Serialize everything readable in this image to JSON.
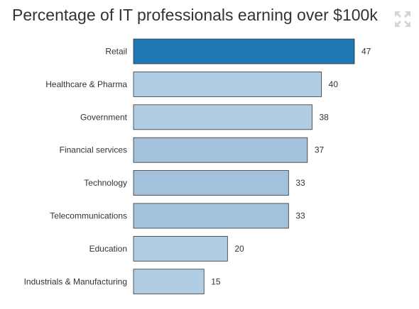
{
  "header": {
    "title": "Percentage of IT professionals earning over $100k"
  },
  "controls": {
    "expand_icon": "expand-arrows-icon"
  },
  "colors": {
    "highlight": "#1f77b4",
    "bar": "#b0cde4",
    "bar_alt": "#a3c1da",
    "bar_stroke": "#333333"
  },
  "chart_data": {
    "type": "bar",
    "orientation": "horizontal",
    "title": "Percentage of IT professionals earning over $100k",
    "categories": [
      "Retail",
      "Healthcare & Pharma",
      "Government",
      "Financial services",
      "Technology",
      "Telecommunications",
      "Education",
      "Industrials & Manufacturing"
    ],
    "values": [
      47,
      40,
      38,
      37,
      33,
      33,
      20,
      15
    ],
    "highlighted": [
      "Retail"
    ],
    "xlim": [
      0,
      47
    ],
    "grid": false,
    "data_labels": true
  }
}
